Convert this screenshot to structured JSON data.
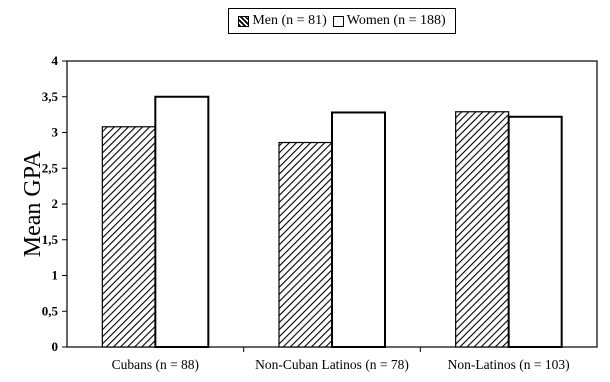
{
  "chart_data": {
    "type": "bar",
    "title": "",
    "ylabel": "Mean GPA",
    "xlabel": "",
    "categories": [
      "Cubans (n = 88)",
      "Non-Cuban Latinos (n = 78)",
      "Non-Latinos (n = 103)"
    ],
    "series": [
      {
        "name": "Men (n = 81)",
        "values": [
          3.08,
          2.86,
          3.29
        ],
        "pattern": "diagonal-hatch"
      },
      {
        "name": "Women (n = 188)",
        "values": [
          3.5,
          3.28,
          3.22
        ],
        "pattern": "solid-white"
      }
    ],
    "ylim": [
      0,
      4
    ],
    "yticks": [
      "0",
      "0,5",
      "1",
      "1,5",
      "2",
      "2,5",
      "3",
      "3,5",
      "4"
    ],
    "grid": false,
    "legend_position": "top-center",
    "colors": {
      "bar_stroke": "#000000",
      "hatch": "#000000",
      "fill": "#ffffff"
    }
  }
}
